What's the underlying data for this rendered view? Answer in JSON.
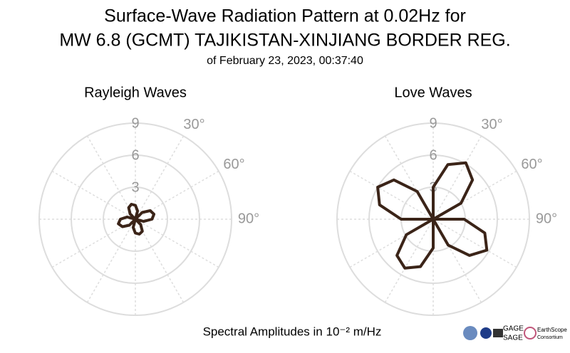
{
  "header": {
    "title_lines": [
      "Surface-Wave Radiation Pattern at 0.02Hz for",
      "MW 6.8 (GCMT) TAJIKISTAN-XINJIANG BORDER REG."
    ],
    "subtitle": "of February 23, 2023, 00:37:40"
  },
  "caption": "Spectral Amplitudes in 10⁻² m/Hz",
  "logos": [
    "GAGE",
    "SAGE",
    "EarthScope",
    "Consortium"
  ],
  "chart_data": [
    {
      "type": "polar",
      "title": "Rayleigh Waves",
      "color": "#3b2418",
      "theta": [
        0,
        15,
        30,
        45,
        60,
        75,
        90,
        105,
        120,
        135,
        150,
        165,
        180,
        195,
        210,
        225,
        240,
        255,
        270,
        285,
        300,
        315,
        330,
        345
      ],
      "values": [
        1.3,
        0.8,
        0,
        0.9,
        1.6,
        1.8,
        1.55,
        0.8,
        0,
        0.7,
        1.3,
        1.45,
        1.3,
        0.8,
        0,
        0.8,
        1.4,
        1.65,
        1.4,
        0.8,
        0,
        0.7,
        1.25,
        1.45
      ],
      "rlim": [
        0,
        9
      ],
      "rticks": [
        3,
        6,
        9
      ],
      "thetaticks": [
        {
          "value": 30,
          "label": "30°"
        },
        {
          "value": 60,
          "label": "60°"
        },
        {
          "value": 90,
          "label": "90°"
        }
      ]
    },
    {
      "type": "polar",
      "title": "Love Waves",
      "color": "#3b2418",
      "theta": [
        0,
        15,
        30,
        45,
        60,
        75,
        90,
        105,
        120,
        135,
        150,
        165,
        180,
        195,
        210,
        225,
        240,
        255,
        270,
        285,
        300,
        315,
        330,
        345
      ],
      "values": [
        3.0,
        5.3,
        6.1,
        5.2,
        3.0,
        0,
        2.9,
        5.0,
        5.8,
        4.8,
        2.8,
        0,
        2.7,
        4.6,
        5.3,
        4.8,
        2.9,
        0,
        3.0,
        5.2,
        6.0,
        5.2,
        3.0,
        0
      ],
      "rlim": [
        0,
        9
      ],
      "rticks": [
        3,
        6,
        9
      ],
      "thetaticks": [
        {
          "value": 30,
          "label": "30°"
        },
        {
          "value": 60,
          "label": "60°"
        },
        {
          "value": 90,
          "label": "90°"
        }
      ]
    }
  ]
}
